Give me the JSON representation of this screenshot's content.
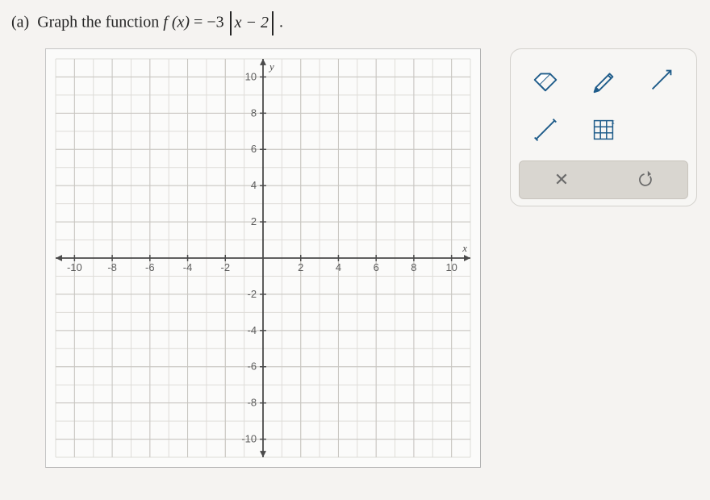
{
  "question": {
    "part_label": "(a)",
    "prompt_prefix": "Graph the function",
    "func_lhs": "f (x)",
    "equals": " = ",
    "coef": "−3 ",
    "abs_inner": "x − 2",
    "period": " ."
  },
  "graph": {
    "type": "cartesian-grid",
    "background_color": "#fbfbfa",
    "minor_grid_color": "#dedcd8",
    "major_grid_color": "#c7c5c0",
    "axis_color": "#4a4a4a",
    "tick_label_color": "#5c5c5c",
    "xlim": [
      -11,
      11
    ],
    "ylim": [
      -11,
      11
    ],
    "major_step": 2,
    "minor_step": 1,
    "x_ticks": [
      -10,
      -8,
      -6,
      -4,
      -2,
      2,
      4,
      6,
      8,
      10
    ],
    "y_ticks": [
      -10,
      -8,
      -6,
      -4,
      -2,
      2,
      4,
      6,
      8,
      10
    ],
    "x_axis_label": "x",
    "y_axis_label": "y",
    "label_fontsize": 13,
    "tick_fontsize": 13
  },
  "tools": {
    "icon_stroke": "#1f5c8a",
    "icons": [
      "eraser",
      "pencil",
      "ray",
      "segment",
      "grid-zoom"
    ],
    "actions": {
      "clear_symbol": "✕",
      "reset_symbol": "↺",
      "clear_color": "#6b6b6b",
      "reset_color": "#6b6b6b"
    }
  }
}
